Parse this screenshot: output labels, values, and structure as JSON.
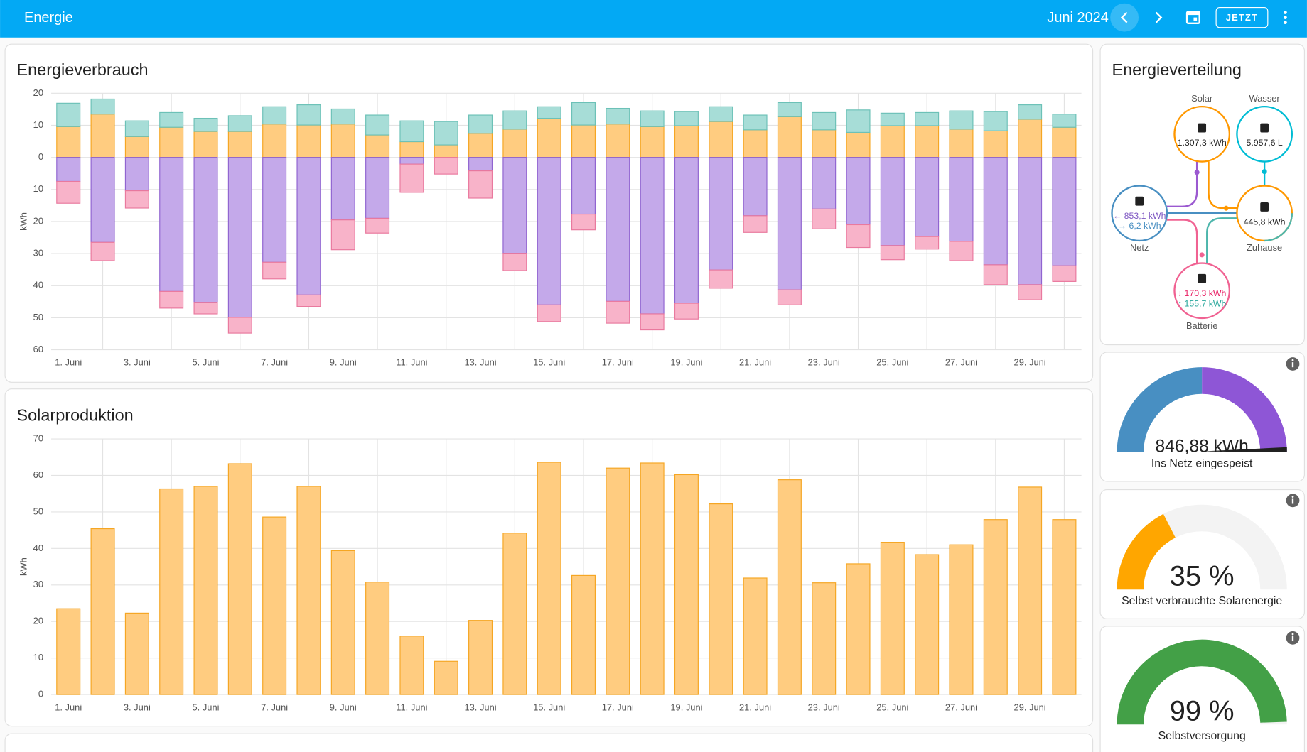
{
  "header": {
    "title": "Energie",
    "period": "Juni 2024",
    "button": "JETZT"
  },
  "chart_data": [
    {
      "type": "bar",
      "stacked": true,
      "title": "Energieverbrauch",
      "ylabel": "kWh",
      "categories": [
        "1. Juni",
        null,
        "3. Juni",
        null,
        "5. Juni",
        null,
        "7. Juni",
        null,
        "9. Juni",
        null,
        "11. Juni",
        null,
        "13. Juni",
        null,
        "15. Juni",
        null,
        "17. Juni",
        null,
        "19. Juni",
        null,
        "21. Juni",
        null,
        "23. Juni",
        null,
        "25. Juni",
        null,
        "27. Juni",
        null,
        "29. Juni",
        null
      ],
      "series": [
        {
          "color": "#ffcc80",
          "border_color": "#f5a623",
          "values": [
            9.6,
            13.5,
            6.5,
            9.4,
            8.1,
            8.1,
            10.4,
            10.1,
            10.4,
            7.0,
            4.9,
            3.9,
            7.5,
            8.8,
            12.2,
            10.1,
            10.4,
            9.6,
            9.9,
            11.2,
            8.6,
            12.7,
            8.6,
            7.8,
            9.9,
            9.9,
            8.8,
            8.3,
            11.9,
            9.4
          ]
        },
        {
          "color": "#a7ddd7",
          "border_color": "#6cc1b7",
          "values": [
            7.3,
            4.7,
            4.9,
            4.6,
            4.1,
            4.9,
            5.4,
            6.3,
            4.7,
            6.2,
            6.5,
            7.3,
            5.7,
            5.7,
            3.6,
            7.0,
            4.9,
            4.9,
            4.4,
            4.6,
            4.6,
            4.4,
            5.4,
            7.0,
            3.9,
            4.1,
            5.7,
            6.0,
            4.5,
            4.1
          ]
        },
        {
          "color": "#c4a9ea",
          "border_color": "#9064d0",
          "values": [
            -7.5,
            -26.5,
            -10.4,
            -41.8,
            -45.2,
            -49.9,
            -32.7,
            -42.9,
            -19.5,
            -19.0,
            -2.1,
            0,
            -4.2,
            -29.9,
            -46.0,
            -17.7,
            -44.9,
            -48.8,
            -45.5,
            -35.1,
            -18.2,
            -41.3,
            -16.1,
            -21.0,
            -27.5,
            -24.7,
            -26.2,
            -33.5,
            -39.7,
            -33.8
          ]
        },
        {
          "color": "#f8b3c9",
          "border_color": "#e9799e",
          "values": [
            -6.8,
            -5.7,
            -5.4,
            -5.2,
            -3.6,
            -4.9,
            -5.2,
            -3.6,
            -9.3,
            -4.6,
            -8.8,
            -5.2,
            -8.5,
            -5.4,
            -5.2,
            -4.9,
            -6.8,
            -5.0,
            -4.9,
            -5.7,
            -5.2,
            -4.7,
            -6.2,
            -7.1,
            -4.4,
            -3.9,
            -6.0,
            -6.2,
            -4.7,
            -4.9
          ]
        }
      ],
      "ylim": [
        -60,
        20
      ],
      "yticks": [
        {
          "value": -60,
          "label": "60"
        },
        {
          "value": -50,
          "label": "50"
        },
        {
          "value": -40,
          "label": "40"
        },
        {
          "value": -30,
          "label": "30"
        },
        {
          "value": -20,
          "label": "20"
        },
        {
          "value": -10,
          "label": "10"
        },
        0,
        10,
        20
      ],
      "grid": true
    },
    {
      "type": "bar",
      "title": "Solarproduktion",
      "ylabel": "kWh",
      "categories": [
        "1. Juni",
        null,
        "3. Juni",
        null,
        "5. Juni",
        null,
        "7. Juni",
        null,
        "9. Juni",
        null,
        "11. Juni",
        null,
        "13. Juni",
        null,
        "15. Juni",
        null,
        "17. Juni",
        null,
        "19. Juni",
        null,
        "21. Juni",
        null,
        "23. Juni",
        null,
        "25. Juni",
        null,
        "27. Juni",
        null,
        "29. Juni",
        null
      ],
      "series": [
        {
          "color": "#ffcc80",
          "border_color": "#f5a623",
          "values": [
            23.5,
            45.4,
            22.3,
            56.3,
            57.0,
            63.2,
            48.6,
            57.0,
            39.4,
            30.8,
            16.0,
            9.1,
            20.3,
            44.2,
            63.6,
            32.6,
            62.0,
            63.4,
            60.2,
            52.2,
            31.9,
            58.8,
            30.6,
            35.8,
            41.7,
            38.3,
            41.0,
            47.9,
            56.8,
            47.9
          ]
        }
      ],
      "ylim": [
        0,
        70
      ],
      "yticks": [
        0,
        10,
        20,
        30,
        40,
        50,
        60,
        70
      ],
      "grid": true
    }
  ],
  "distribution": {
    "title": "Energieverteilung",
    "nodes": [
      {
        "label": "Solar",
        "values": [
          "1.307,3 kWh"
        ]
      },
      {
        "label": "Wasser",
        "values": [
          "5.957,6 L"
        ]
      },
      {
        "label": "Netz",
        "values": [
          "← 853,1 kWh",
          "→ 6,2 kWh"
        ]
      },
      {
        "label": "Zuhause",
        "values": [
          "445,8 kWh"
        ]
      },
      {
        "label": "Batterie",
        "values": [
          "↓ 170,3 kWh",
          "↑ 155,7 kWh"
        ]
      }
    ]
  },
  "gauges": [
    {
      "value_label": "846,88 kWh",
      "caption": "Ins Netz eingespeist"
    },
    {
      "value": 35,
      "value_label": "35 %",
      "caption": "Selbst verbrauchte Solarenergie",
      "color": "#ffa600"
    },
    {
      "value": 99,
      "value_label": "99 %",
      "caption": "Selbstversorgung",
      "color": "#43a047"
    }
  ]
}
